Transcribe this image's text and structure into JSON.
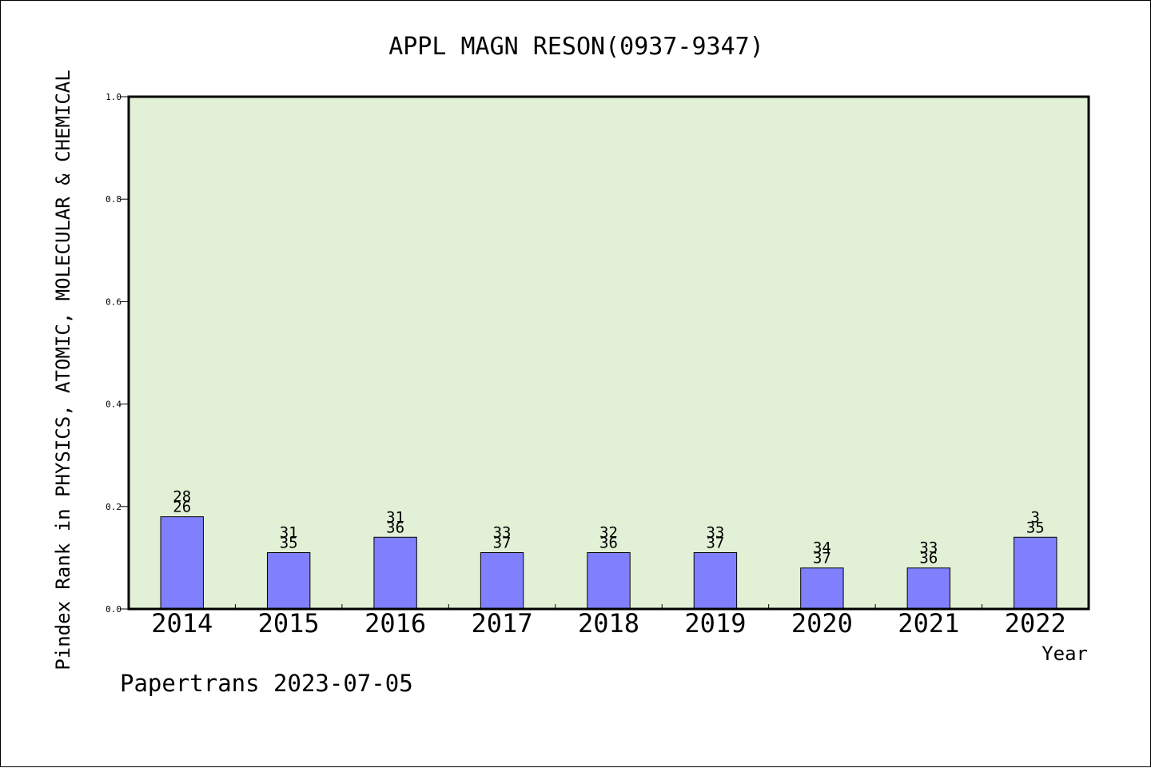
{
  "chart_data": {
    "type": "bar",
    "title": "APPL MAGN RESON(0937-9347)",
    "xlabel": "Year",
    "ylabel": "Pindex Rank in PHYSICS, ATOMIC, MOLECULAR & CHEMICAL",
    "categories": [
      "2014",
      "2015",
      "2016",
      "2017",
      "2018",
      "2019",
      "2020",
      "2021",
      "2022"
    ],
    "values": [
      0.18,
      0.11,
      0.14,
      0.11,
      0.11,
      0.11,
      0.08,
      0.08,
      0.14
    ],
    "labels_top": [
      "28",
      "31",
      "31",
      "33",
      "32",
      "33",
      "34",
      "33",
      "3"
    ],
    "labels_bottom": [
      "26",
      "35",
      "36",
      "37",
      "36",
      "37",
      "37",
      "36",
      "35"
    ],
    "ylim": [
      0,
      1.0
    ],
    "yticks": [
      "0.0",
      "0.2",
      "0.4",
      "0.6",
      "0.8",
      "1.0"
    ],
    "grid": false,
    "colors": {
      "plot_background": "#e2f0d6",
      "bar_fill": "#8080ff",
      "bar_stroke": "#000000"
    }
  },
  "footer": "Papertrans 2023-07-05"
}
